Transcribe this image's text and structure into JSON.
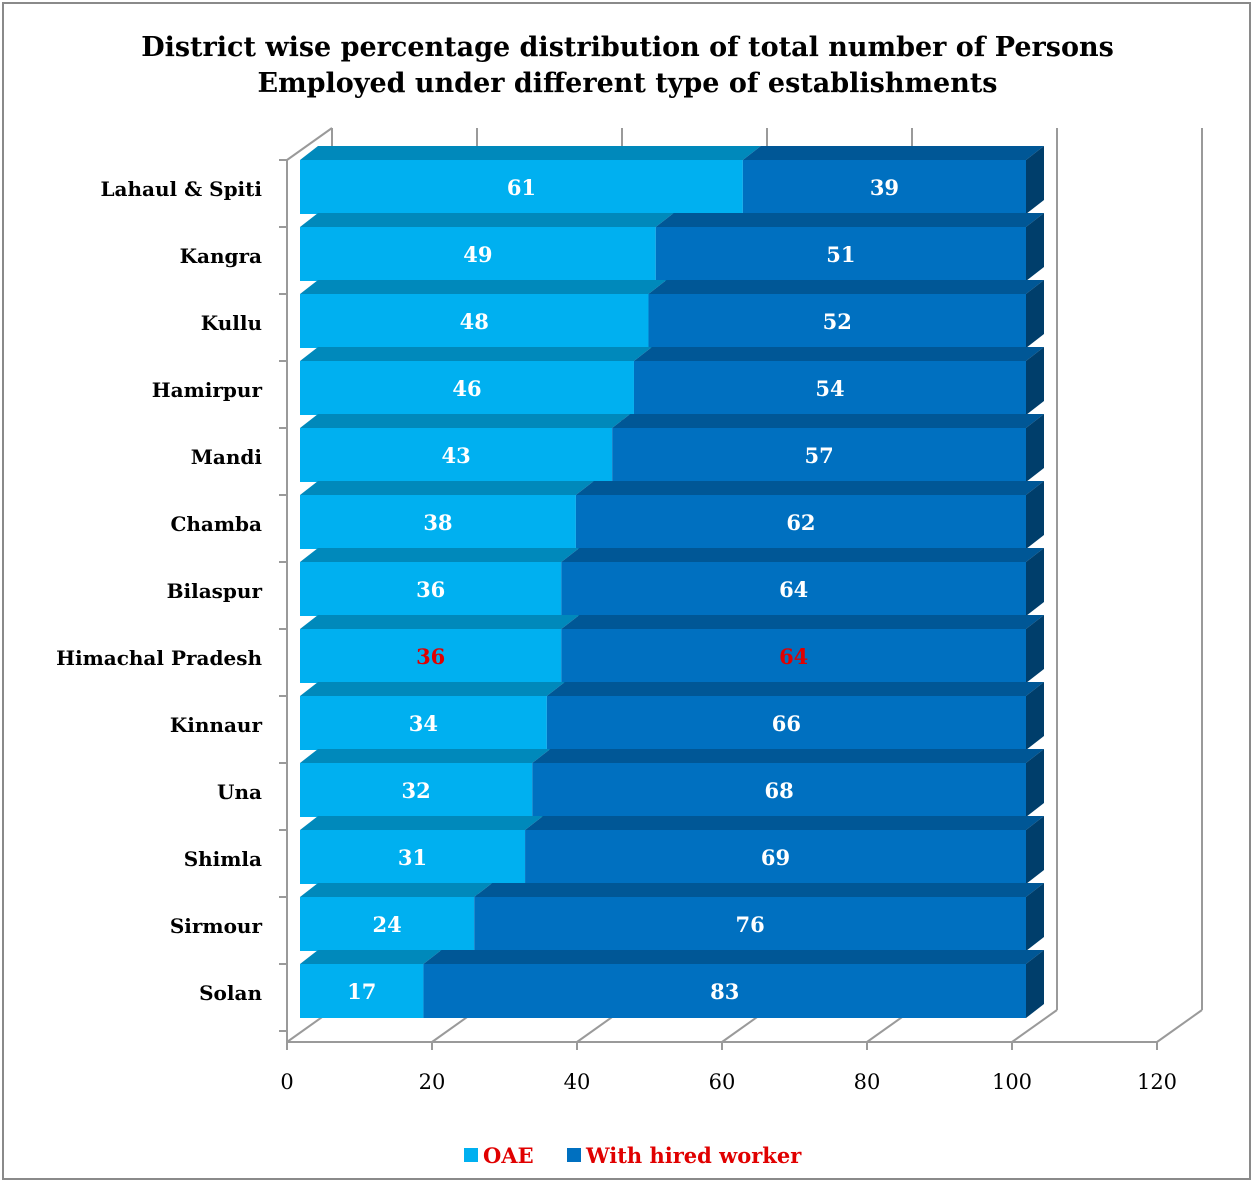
{
  "chart_data": {
    "type": "bar",
    "orientation": "horizontal",
    "stacked": true,
    "title_lines": [
      "District wise percentage distribution of total number of Persons",
      "Employed under different type of establishments"
    ],
    "categories": [
      "Lahaul & Spiti",
      "Kangra",
      "Kullu",
      "Hamirpur",
      "Mandi",
      "Chamba",
      "Bilaspur",
      "Himachal Pradesh",
      "Kinnaur",
      "Una",
      "Shimla",
      "Sirmour",
      "Solan"
    ],
    "series": [
      {
        "name": "OAE",
        "values": [
          61,
          49,
          48,
          46,
          43,
          38,
          36,
          36,
          34,
          32,
          31,
          24,
          17
        ]
      },
      {
        "name": "With hired worker",
        "values": [
          39,
          51,
          52,
          54,
          57,
          62,
          64,
          64,
          66,
          68,
          69,
          76,
          83
        ]
      }
    ],
    "xlim": [
      0,
      120
    ],
    "xticks": [
      0,
      20,
      40,
      60,
      80,
      100,
      120
    ],
    "highlight_category": "Himachal Pradesh",
    "legend": {
      "position": "bottom"
    },
    "grid": true,
    "colors": {
      "oae": "#00b0f0",
      "oae_top": "#0089bb",
      "hired": "#0070c0",
      "hired_top": "#005796",
      "side": "#003e6b",
      "label_default": "#ffffff",
      "label_highlight": "#e00000",
      "legend_text": "#e00000",
      "axis": "#9a9a9a"
    }
  }
}
